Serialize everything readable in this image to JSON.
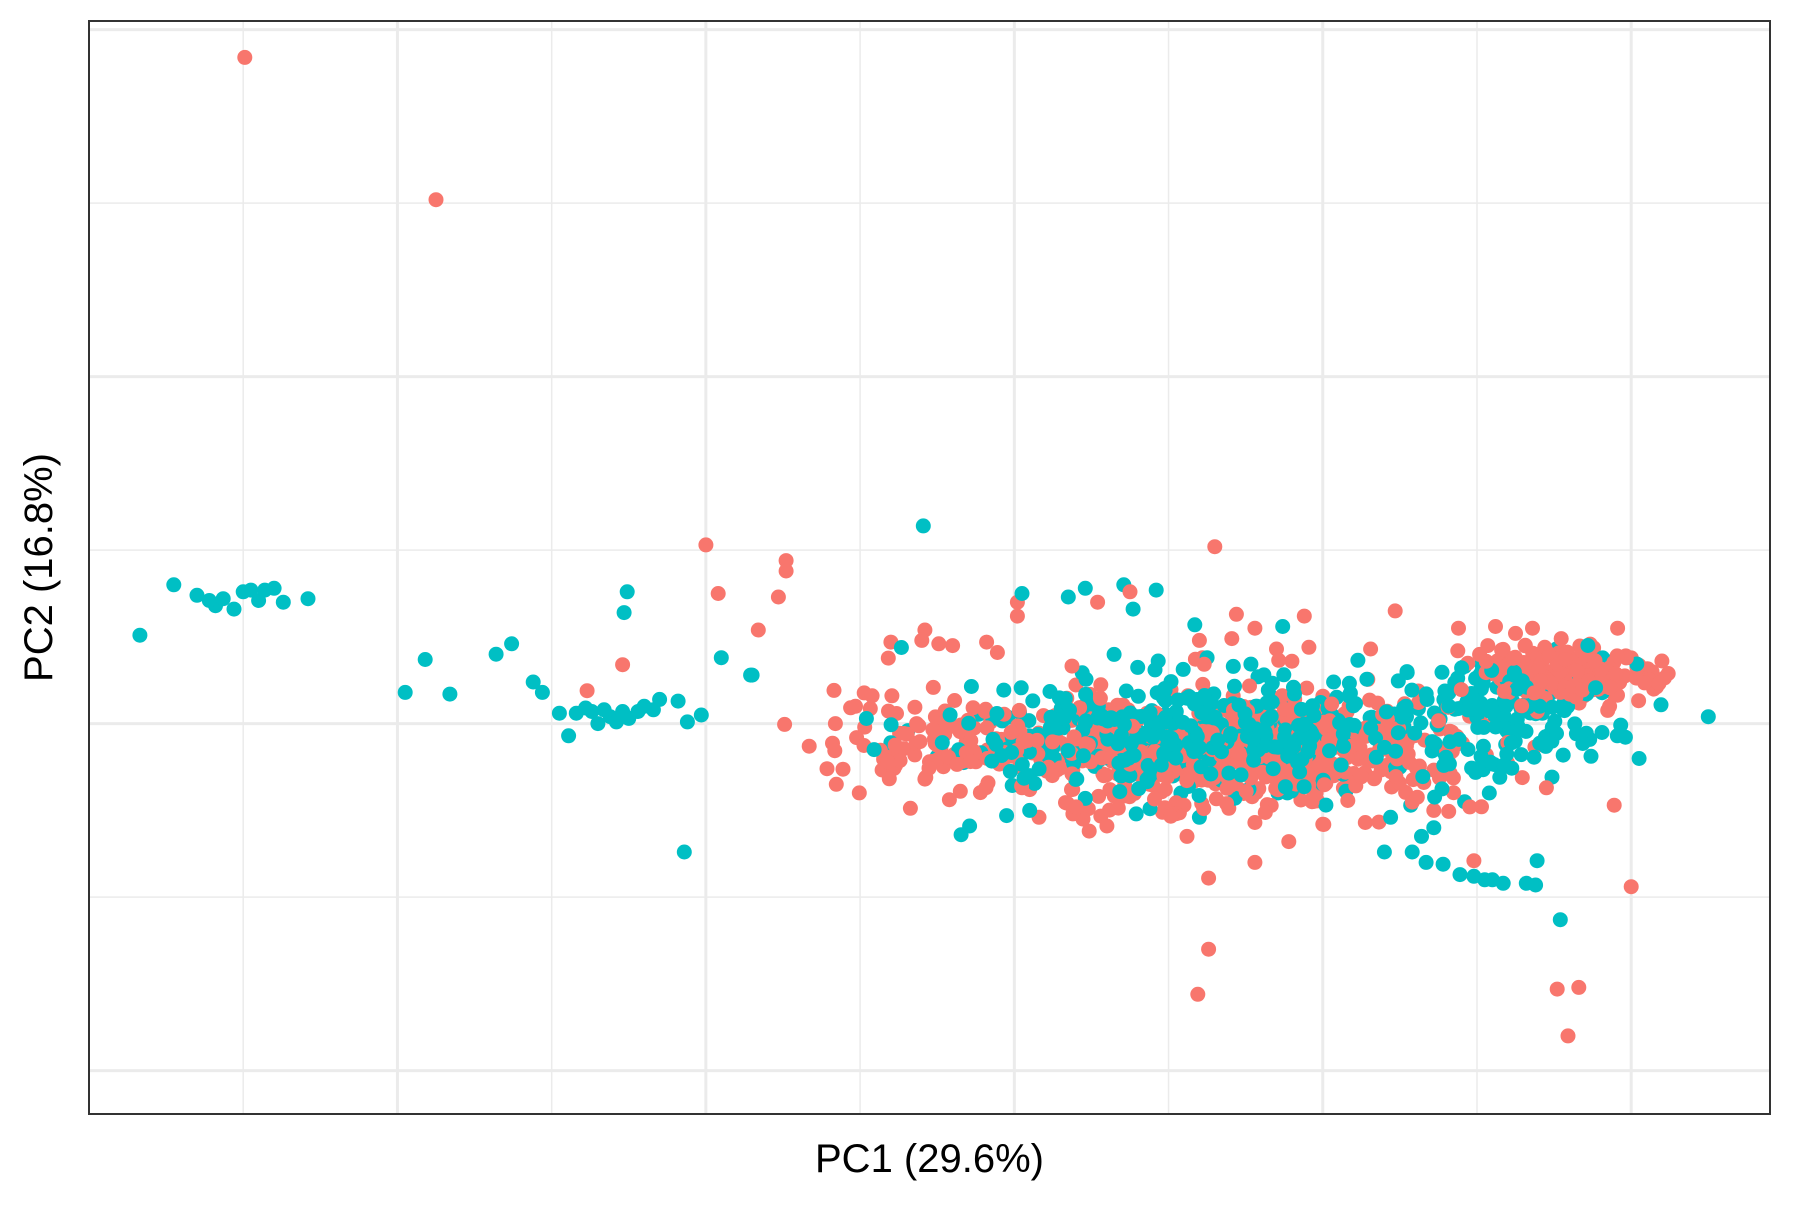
{
  "chart_data": {
    "type": "scatter",
    "title": "",
    "xlabel": "PC1 (29.6%)",
    "ylabel": "PC2 (16.8%)",
    "tick_labels_shown": false,
    "grid": true,
    "legend": "none",
    "xlim": [
      -6.0,
      4.9
    ],
    "ylim": [
      -2.25,
      4.05
    ],
    "colors": {
      "series_a": "#F8766D",
      "series_b": "#00BFC4",
      "grid": "#EBEBEB",
      "panel_border": "#333333"
    },
    "series": [
      {
        "color": "#F8766D",
        "points": [
          [
            -4.99,
            3.84
          ],
          [
            -3.75,
            3.02
          ],
          [
            -2.0,
            1.03
          ],
          [
            -1.53,
            0.73
          ],
          [
            -1.48,
            0.88
          ],
          [
            -1.48,
            0.94
          ],
          [
            -1.92,
            0.75
          ],
          [
            -2.54,
            0.34
          ],
          [
            -2.77,
            0.19
          ],
          [
            -1.66,
            0.54
          ],
          [
            -0.58,
            0.54
          ],
          [
            -0.6,
            0.48
          ],
          [
            -0.8,
            0.47
          ],
          [
            -0.49,
            0.46
          ],
          [
            -0.4,
            0.45
          ],
          [
            -0.18,
            0.47
          ],
          [
            -0.11,
            0.41
          ],
          [
            0.02,
            0.7
          ],
          [
            0.02,
            0.62
          ],
          [
            0.54,
            0.7
          ],
          [
            0.75,
            0.76
          ],
          [
            1.3,
            1.02
          ],
          [
            1.8,
            0.36
          ],
          [
            1.7,
            0.43
          ],
          [
            1.56,
            0.55
          ],
          [
            1.41,
            0.49
          ],
          [
            1.2,
            0.48
          ],
          [
            1.22,
            0.38
          ],
          [
            1.44,
            0.63
          ],
          [
            1.91,
            0.44
          ],
          [
            1.88,
            0.62
          ],
          [
            2.31,
            0.43
          ],
          [
            2.47,
            0.65
          ],
          [
            2.88,
            0.55
          ],
          [
            3.07,
            0.45
          ],
          [
            3.12,
            0.56
          ],
          [
            3.25,
            0.52
          ],
          [
            3.36,
            0.55
          ],
          [
            3.44,
            0.44
          ],
          [
            3.55,
            0.41
          ],
          [
            3.68,
            0.32
          ],
          [
            3.78,
            0.25
          ],
          [
            3.86,
            0.1
          ],
          [
            -1.16,
            0.0
          ],
          [
            -1.03,
            0.1
          ],
          [
            -0.97,
            -0.02
          ],
          [
            -0.45,
            0.01
          ],
          [
            -0.55,
            -0.22
          ],
          [
            -1.33,
            -0.13
          ],
          [
            -0.8,
            -0.16
          ],
          [
            -0.77,
            -0.24
          ],
          [
            -0.3,
            0.02
          ],
          [
            0.05,
            -0.37
          ],
          [
            0.1,
            -0.38
          ],
          [
            0.48,
            -0.49
          ],
          [
            0.4,
            -0.48
          ],
          [
            -0.25,
            -0.22
          ],
          [
            -0.35,
            -0.39
          ],
          [
            0.58,
            -0.3
          ],
          [
            0.62,
            -0.38
          ],
          [
            0.88,
            -0.35
          ],
          [
            0.7,
            -0.42
          ],
          [
            1.34,
            -0.34
          ],
          [
            1.56,
            -0.57
          ],
          [
            1.93,
            -0.45
          ],
          [
            1.78,
            -0.68
          ],
          [
            2.0,
            -0.58
          ],
          [
            2.72,
            -0.5
          ],
          [
            2.98,
            -0.79
          ],
          [
            3.17,
            -0.25
          ],
          [
            3.45,
            -0.37
          ],
          [
            3.89,
            -0.47
          ],
          [
            4.0,
            -0.94
          ],
          [
            3.66,
            -1.52
          ],
          [
            3.59,
            -1.8
          ],
          [
            3.52,
            -1.53
          ],
          [
            1.26,
            -1.3
          ],
          [
            1.19,
            -1.56
          ],
          [
            1.26,
            -0.89
          ],
          [
            1.56,
            -0.8
          ],
          [
            1.12,
            -0.65
          ],
          [
            0.6,
            -0.59
          ],
          [
            0.38,
            -0.52
          ],
          [
            0.16,
            -0.54
          ]
        ]
      },
      {
        "color": "#00BFC4",
        "points": [
          [
            -5.67,
            0.51
          ],
          [
            -5.45,
            0.8
          ],
          [
            -5.3,
            0.74
          ],
          [
            -5.22,
            0.71
          ],
          [
            -5.13,
            0.72
          ],
          [
            -5.06,
            0.66
          ],
          [
            -5.0,
            0.76
          ],
          [
            -4.95,
            0.77
          ],
          [
            -4.9,
            0.71
          ],
          [
            -4.86,
            0.77
          ],
          [
            -4.74,
            0.7
          ],
          [
            -4.58,
            0.72
          ],
          [
            -4.8,
            0.78
          ],
          [
            -5.18,
            0.68
          ],
          [
            -3.95,
            0.18
          ],
          [
            -3.82,
            0.37
          ],
          [
            -3.66,
            0.17
          ],
          [
            -3.36,
            0.4
          ],
          [
            -3.26,
            0.46
          ],
          [
            -3.12,
            0.24
          ],
          [
            -3.06,
            0.18
          ],
          [
            -2.95,
            0.06
          ],
          [
            -2.89,
            -0.07
          ],
          [
            -2.84,
            0.06
          ],
          [
            -2.78,
            0.09
          ],
          [
            -2.74,
            0.07
          ],
          [
            -2.7,
            0.0
          ],
          [
            -2.66,
            0.08
          ],
          [
            -2.62,
            0.04
          ],
          [
            -2.58,
            0.01
          ],
          [
            -2.54,
            0.07
          ],
          [
            -2.5,
            0.03
          ],
          [
            -2.44,
            0.07
          ],
          [
            -2.4,
            0.1
          ],
          [
            -2.34,
            0.08
          ],
          [
            -2.3,
            0.14
          ],
          [
            -2.18,
            0.13
          ],
          [
            -2.12,
            0.01
          ],
          [
            -2.03,
            0.05
          ],
          [
            -1.9,
            0.38
          ],
          [
            -2.53,
            0.64
          ],
          [
            -2.51,
            0.76
          ],
          [
            -2.14,
            -0.74
          ],
          [
            -1.71,
            0.28
          ],
          [
            -1.7,
            0.28
          ],
          [
            -0.59,
            1.14
          ],
          [
            0.05,
            0.75
          ],
          [
            0.35,
            0.73
          ],
          [
            0.46,
            0.78
          ],
          [
            0.71,
            0.8
          ],
          [
            0.77,
            0.66
          ],
          [
            0.92,
            0.77
          ],
          [
            1.17,
            0.57
          ],
          [
            1.74,
            0.56
          ],
          [
            1.25,
            0.38
          ],
          [
            1.42,
            0.33
          ],
          [
            1.58,
            0.27
          ],
          [
            1.81,
            0.15
          ],
          [
            2.07,
            0.24
          ],
          [
            2.17,
            0.16
          ],
          [
            2.54,
            0.1
          ],
          [
            2.92,
            0.33
          ],
          [
            3.13,
            0.21
          ],
          [
            3.3,
            0.33
          ],
          [
            3.44,
            0.28
          ],
          [
            3.91,
            -0.07
          ],
          [
            4.5,
            0.04
          ],
          [
            0.25,
            -0.14
          ],
          [
            0.35,
            -0.23
          ],
          [
            0.55,
            -0.21
          ],
          [
            0.86,
            -0.32
          ],
          [
            0.79,
            -0.52
          ],
          [
            1.2,
            -0.54
          ],
          [
            1.43,
            -0.43
          ],
          [
            1.71,
            -0.4
          ],
          [
            1.96,
            -0.35
          ],
          [
            2.15,
            -0.39
          ],
          [
            2.44,
            -0.54
          ],
          [
            2.57,
            -0.47
          ],
          [
            2.67,
            -0.8
          ],
          [
            2.78,
            -0.81
          ],
          [
            2.89,
            -0.87
          ],
          [
            2.98,
            -0.88
          ],
          [
            3.05,
            -0.9
          ],
          [
            3.1,
            -0.9
          ],
          [
            3.17,
            -0.92
          ],
          [
            3.32,
            -0.92
          ],
          [
            3.38,
            -0.93
          ],
          [
            3.39,
            -0.79
          ],
          [
            3.54,
            -1.13
          ],
          [
            2.64,
            -0.65
          ],
          [
            2.58,
            -0.74
          ],
          [
            2.4,
            -0.74
          ],
          [
            2.72,
            -0.6
          ],
          [
            2.92,
            -0.45
          ],
          [
            3.08,
            -0.4
          ],
          [
            1.08,
            -0.4
          ],
          [
            0.88,
            -0.49
          ],
          [
            0.1,
            -0.5
          ],
          [
            -0.29,
            -0.59
          ],
          [
            -0.05,
            -0.53
          ],
          [
            -0.36,
            -0.15
          ],
          [
            -0.8,
            -0.11
          ],
          [
            -0.69,
            -0.04
          ],
          [
            -0.5,
            -0.19
          ],
          [
            -0.47,
            -0.09
          ],
          [
            -0.3,
            -0.12
          ],
          [
            0.02,
            -0.13
          ],
          [
            0.3,
            -0.01
          ],
          [
            0.6,
            -0.06
          ],
          [
            0.8,
            0.04
          ],
          [
            1.0,
            0.02
          ]
        ]
      }
    ],
    "dense_clusters": [
      {
        "series": 0,
        "center": [
          1.45,
          -0.15
        ],
        "spread": [
          1.25,
          0.3
        ],
        "count": 620,
        "seed": 11
      },
      {
        "series": 0,
        "center": [
          3.55,
          0.28
        ],
        "spread": [
          0.52,
          0.15
        ],
        "count": 210,
        "seed": 23
      },
      {
        "series": 0,
        "center": [
          -0.3,
          -0.1
        ],
        "spread": [
          0.8,
          0.28
        ],
        "count": 120,
        "seed": 37
      },
      {
        "series": 1,
        "center": [
          1.1,
          -0.05
        ],
        "spread": [
          1.3,
          0.32
        ],
        "count": 380,
        "seed": 41
      },
      {
        "series": 1,
        "center": [
          3.1,
          0.05
        ],
        "spread": [
          0.75,
          0.3
        ],
        "count": 160,
        "seed": 53
      }
    ]
  }
}
